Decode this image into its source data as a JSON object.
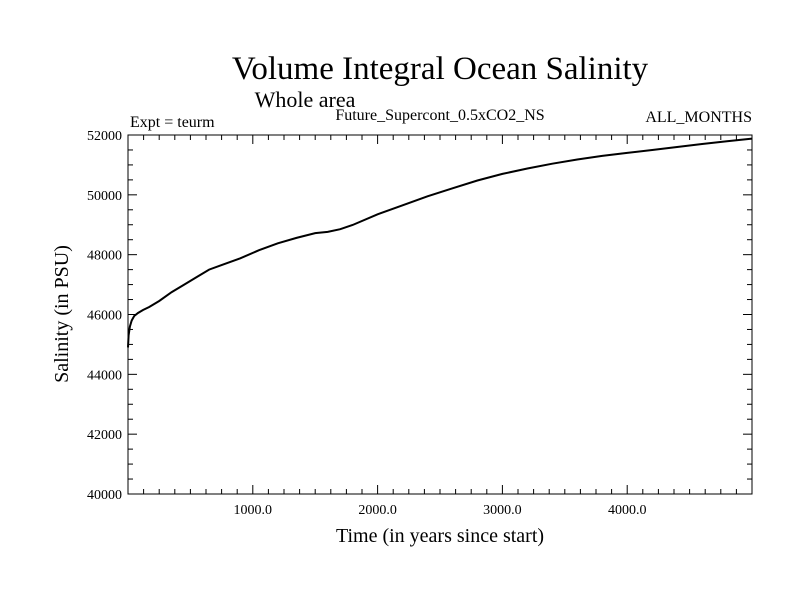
{
  "chart_data": {
    "type": "line",
    "title": "Volume Integral Ocean Salinity",
    "subtitle": "Whole area",
    "annotations": {
      "left": "Expt = teurm",
      "center": "Future_Supercont_0.5xCO2_NS",
      "right": "ALL_MONTHS"
    },
    "xlabel": "Time (in years since start)",
    "ylabel": "Salinity (in PSU)",
    "xlim": [
      0,
      5000
    ],
    "ylim": [
      40000,
      52000
    ],
    "x_ticks": [
      1000,
      2000,
      3000,
      4000
    ],
    "x_tick_labels": [
      "1000.0",
      "2000.0",
      "3000.0",
      "4000.0"
    ],
    "y_ticks": [
      40000,
      42000,
      44000,
      46000,
      48000,
      50000,
      52000
    ],
    "y_tick_labels": [
      "40000",
      "42000",
      "44000",
      "46000",
      "48000",
      "50000",
      "52000"
    ],
    "grid": false,
    "line_color": "#000000",
    "series": [
      {
        "x": [
          0,
          5,
          15,
          30,
          50,
          80,
          120,
          170,
          250,
          350,
          450,
          550,
          650,
          750,
          900,
          1050,
          1200,
          1350,
          1500,
          1600,
          1700,
          1800,
          2000,
          2200,
          2400,
          2600,
          2800,
          3000,
          3200,
          3400,
          3600,
          3800,
          4000,
          4200,
          4400,
          4600,
          4800,
          5000
        ],
        "y": [
          44900,
          45300,
          45600,
          45800,
          45950,
          46050,
          46150,
          46250,
          46450,
          46750,
          47000,
          47250,
          47500,
          47650,
          47880,
          48150,
          48380,
          48560,
          48720,
          48760,
          48850,
          48990,
          49350,
          49650,
          49950,
          50220,
          50480,
          50700,
          50880,
          51040,
          51180,
          51300,
          51400,
          51500,
          51600,
          51700,
          51790,
          51880
        ]
      }
    ]
  }
}
